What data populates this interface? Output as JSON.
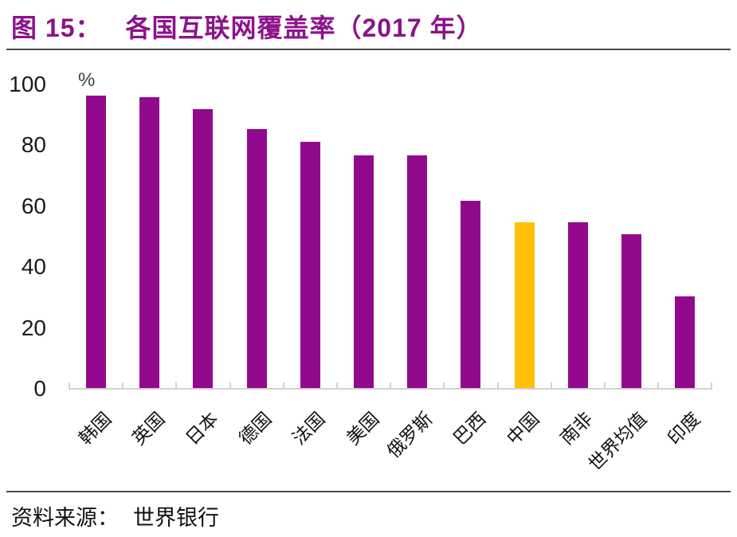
{
  "figure": {
    "title_prefix": "图 15：",
    "title_main": "各国互联网覆盖率（2017 年）",
    "title_color": "#8C128B"
  },
  "source": {
    "label": "资料来源：",
    "value": "世界银行"
  },
  "chart_data": {
    "type": "bar",
    "title": "各国互联网覆盖率（2017 年）",
    "unit_label": "%",
    "categories": [
      "韩国",
      "英国",
      "日本",
      "德国",
      "法国",
      "美国",
      "俄罗斯",
      "巴西",
      "中国",
      "南非",
      "世界均值",
      "印度"
    ],
    "values": [
      96,
      95.5,
      91.5,
      85,
      81,
      76.5,
      76.5,
      61.5,
      54.5,
      54.5,
      50.5,
      30
    ],
    "bar_color": "#93098D",
    "highlight_index": 8,
    "highlight_color": "#FFC008",
    "highlighted_category": "中国",
    "xlabel": "",
    "ylabel": "%",
    "ylim": [
      0,
      100
    ],
    "yticks": [
      0,
      20,
      40,
      60,
      80,
      100
    ],
    "grid": false,
    "legend": false,
    "axis_color": "#d2d2d2"
  }
}
